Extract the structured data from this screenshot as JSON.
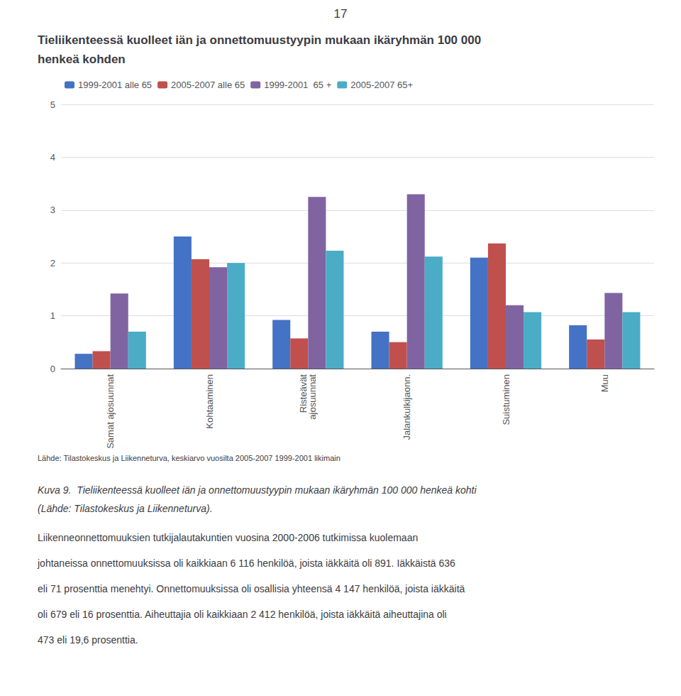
{
  "chart_data": {
    "type": "bar",
    "title": "Tieliikenteessä kuolleet iän ja onnettomuustyypin mukaan ikäryhmän 100 000\nhenkeä kohden",
    "categories": [
      "Samat ajosuunnat",
      "Kohtaaminen",
      "Risteävät\najosuunnat",
      "Jalankulkijaonn.",
      "Suistuminen",
      "Muu"
    ],
    "series": [
      {
        "name": "1999-2001 alle 65",
        "color": "#4472C4",
        "values": [
          0.28,
          2.5,
          0.92,
          0.7,
          2.1,
          0.82
        ]
      },
      {
        "name": "2005-2007 alle 65",
        "color": "#C0504D",
        "values": [
          0.33,
          2.07,
          0.57,
          0.5,
          2.37,
          0.55
        ]
      },
      {
        "name": "1999-2001  65 +",
        "color": "#8064A2",
        "values": [
          1.42,
          1.92,
          3.25,
          3.3,
          1.2,
          1.43
        ]
      },
      {
        "name": "2005-2007 65+",
        "color": "#4BACC6",
        "values": [
          0.7,
          2.0,
          2.23,
          2.12,
          1.07,
          1.07
        ]
      }
    ],
    "ylim": [
      0,
      5
    ],
    "yticks": [
      0,
      1,
      2,
      3,
      4,
      5
    ],
    "grid": true,
    "legend": "upper left",
    "annotations": [
      "17",
      "Lähde: Tilastokeskus ja Liikenneturva, keskiarvo vuosilta 2005-2007 1999-2001 likimain",
      "Kuva 9.  Tieliikenteessä kuolleet iän ja onnettomuustyypin mukaan ikäryhmän 100 000 henkeä kohti",
      "(Lähde: Tilastokeskus ja Liikenneturva).",
      "Liikenneonnettomuuksien tutkijalautakuntien vuosina 2000-2006 tutkimissa kuolemaan",
      "johtaneissa onnettomuuksissa oli kaikkiaan 6 116 henkilöä, joista iäkkäitä oli 891. Iäkkäistä 636",
      "eli 71 prosenttia menehtyi. Onnettomuuksissa oli osallisia yhteensä 4 147 henkilöä, joista iäkkäitä",
      "oli 679 eli 16 prosenttia. Aiheuttajia oli kaikkiaan 2 412 henkilöä, joista iäkkäitä aiheuttajina oli",
      "473 eli 19,6 prosenttia."
    ]
  }
}
